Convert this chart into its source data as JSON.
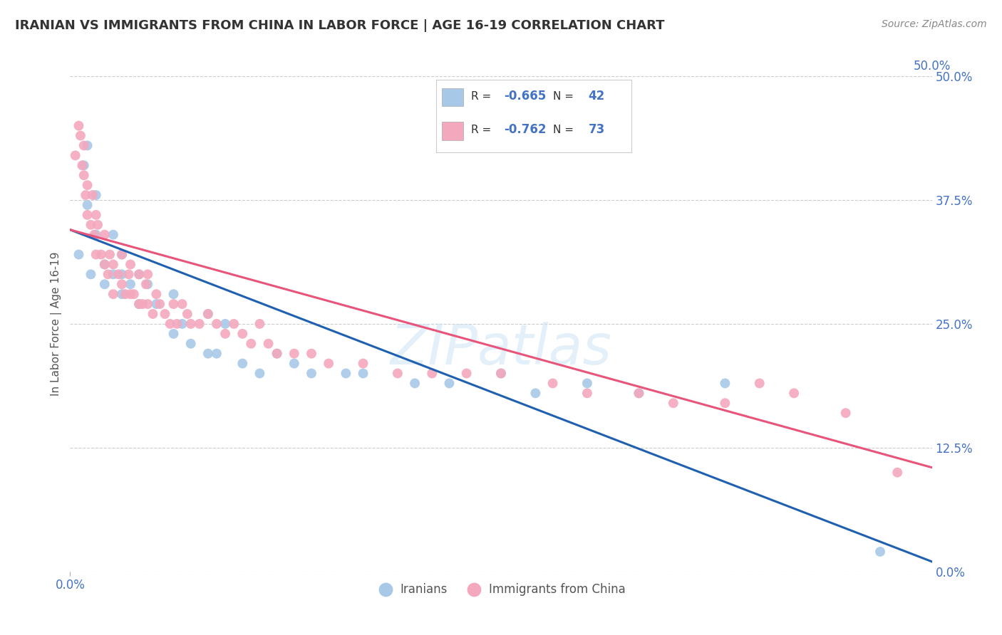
{
  "title": "IRANIAN VS IMMIGRANTS FROM CHINA IN LABOR FORCE | AGE 16-19 CORRELATION CHART",
  "source": "Source: ZipAtlas.com",
  "ylabel": "In Labor Force | Age 16-19",
  "xmin": 0.0,
  "xmax": 0.5,
  "ymin": 0.0,
  "ymax": 0.5,
  "series": [
    {
      "name": "Iranians",
      "R": -0.665,
      "N": 42,
      "color": "#a8c8e8",
      "line_color": "#2060b0",
      "x": [
        0.005,
        0.008,
        0.01,
        0.01,
        0.012,
        0.015,
        0.015,
        0.02,
        0.02,
        0.025,
        0.025,
        0.03,
        0.03,
        0.03,
        0.035,
        0.04,
        0.04,
        0.045,
        0.05,
        0.06,
        0.06,
        0.065,
        0.07,
        0.08,
        0.08,
        0.085,
        0.09,
        0.1,
        0.11,
        0.12,
        0.13,
        0.14,
        0.16,
        0.17,
        0.2,
        0.22,
        0.25,
        0.27,
        0.3,
        0.33,
        0.38,
        0.47
      ],
      "y": [
        0.32,
        0.41,
        0.37,
        0.43,
        0.3,
        0.34,
        0.38,
        0.31,
        0.29,
        0.3,
        0.34,
        0.32,
        0.28,
        0.3,
        0.29,
        0.27,
        0.3,
        0.29,
        0.27,
        0.24,
        0.28,
        0.25,
        0.23,
        0.22,
        0.26,
        0.22,
        0.25,
        0.21,
        0.2,
        0.22,
        0.21,
        0.2,
        0.2,
        0.2,
        0.19,
        0.19,
        0.2,
        0.18,
        0.19,
        0.18,
        0.19,
        0.02
      ]
    },
    {
      "name": "Immigrants from China",
      "R": -0.762,
      "N": 73,
      "color": "#f4a8be",
      "line_color": "#e8547a",
      "x": [
        0.003,
        0.005,
        0.006,
        0.007,
        0.008,
        0.008,
        0.009,
        0.01,
        0.01,
        0.012,
        0.013,
        0.014,
        0.015,
        0.015,
        0.016,
        0.018,
        0.02,
        0.02,
        0.022,
        0.023,
        0.025,
        0.025,
        0.028,
        0.03,
        0.03,
        0.032,
        0.034,
        0.035,
        0.035,
        0.037,
        0.04,
        0.04,
        0.042,
        0.044,
        0.045,
        0.045,
        0.048,
        0.05,
        0.052,
        0.055,
        0.058,
        0.06,
        0.062,
        0.065,
        0.068,
        0.07,
        0.075,
        0.08,
        0.085,
        0.09,
        0.095,
        0.1,
        0.105,
        0.11,
        0.115,
        0.12,
        0.13,
        0.14,
        0.15,
        0.17,
        0.19,
        0.21,
        0.23,
        0.25,
        0.28,
        0.3,
        0.33,
        0.35,
        0.38,
        0.4,
        0.42,
        0.45,
        0.48
      ],
      "y": [
        0.42,
        0.45,
        0.44,
        0.41,
        0.4,
        0.43,
        0.38,
        0.39,
        0.36,
        0.35,
        0.38,
        0.34,
        0.36,
        0.32,
        0.35,
        0.32,
        0.31,
        0.34,
        0.3,
        0.32,
        0.31,
        0.28,
        0.3,
        0.29,
        0.32,
        0.28,
        0.3,
        0.28,
        0.31,
        0.28,
        0.27,
        0.3,
        0.27,
        0.29,
        0.27,
        0.3,
        0.26,
        0.28,
        0.27,
        0.26,
        0.25,
        0.27,
        0.25,
        0.27,
        0.26,
        0.25,
        0.25,
        0.26,
        0.25,
        0.24,
        0.25,
        0.24,
        0.23,
        0.25,
        0.23,
        0.22,
        0.22,
        0.22,
        0.21,
        0.21,
        0.2,
        0.2,
        0.2,
        0.2,
        0.19,
        0.18,
        0.18,
        0.17,
        0.17,
        0.19,
        0.18,
        0.16,
        0.1
      ]
    }
  ],
  "reg_lines": [
    {
      "x0": 0.0,
      "y0": 0.345,
      "x1": 0.5,
      "y1": 0.01
    },
    {
      "x0": 0.0,
      "y0": 0.345,
      "x1": 0.5,
      "y1": 0.105
    }
  ],
  "watermark": "ZIPatlas",
  "background_color": "#ffffff",
  "grid_color": "#cccccc",
  "title_color": "#333333",
  "axis_label_color": "#4472c4",
  "legend_R_color": "#4472c4",
  "legend_N_color": "#4472c4",
  "ytick_vals": [
    0.0,
    0.125,
    0.25,
    0.375,
    0.5
  ],
  "ytick_labels": [
    "0.0%",
    "12.5%",
    "25.0%",
    "37.5%",
    "50.0%"
  ],
  "xtick_bottom_vals": [
    0.0,
    0.5
  ],
  "xtick_bottom_labels": [
    "0.0%",
    "50.0%"
  ]
}
